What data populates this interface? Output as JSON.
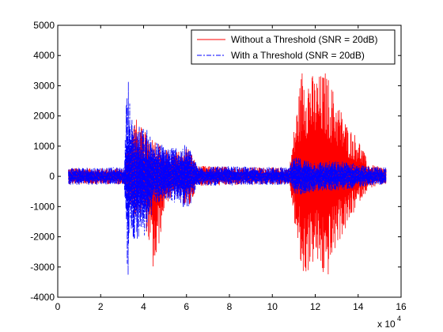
{
  "chart_data": {
    "type": "line",
    "title": "",
    "xlabel": "",
    "ylabel": "",
    "x_multiplier_label": "x 10",
    "x_multiplier_exponent": "4",
    "xlim": [
      0,
      16
    ],
    "ylim": [
      -4000,
      5000
    ],
    "x_ticks": [
      0,
      2,
      4,
      6,
      8,
      10,
      12,
      14,
      16
    ],
    "x_tick_labels": [
      "0",
      "2",
      "4",
      "6",
      "8",
      "10",
      "12",
      "14",
      "16"
    ],
    "y_ticks": [
      -4000,
      -3000,
      -2000,
      -1000,
      0,
      1000,
      2000,
      3000,
      4000,
      5000
    ],
    "y_tick_labels": [
      "-4000",
      "-3000",
      "-2000",
      "-1000",
      "0",
      "1000",
      "2000",
      "3000",
      "4000",
      "5000"
    ],
    "grid": false,
    "legend_position": "top-right",
    "series": [
      {
        "name": "Without a Threshold (SNR = 20dB)",
        "color": "#ff0000",
        "style": "solid",
        "envelope": [
          {
            "x": 0.5,
            "upper": 280,
            "lower": -260
          },
          {
            "x": 3.1,
            "upper": 260,
            "lower": -260
          },
          {
            "x": 3.3,
            "upper": 1200,
            "lower": -900
          },
          {
            "x": 3.6,
            "upper": 2000,
            "lower": -1400
          },
          {
            "x": 4.0,
            "upper": 1500,
            "lower": -1200
          },
          {
            "x": 4.5,
            "upper": 1300,
            "lower": -3400
          },
          {
            "x": 5.0,
            "upper": 900,
            "lower": -900
          },
          {
            "x": 5.5,
            "upper": 800,
            "lower": -700
          },
          {
            "x": 6.1,
            "upper": 1000,
            "lower": -1100
          },
          {
            "x": 6.5,
            "upper": 350,
            "lower": -320
          },
          {
            "x": 10.8,
            "upper": 280,
            "lower": -260
          },
          {
            "x": 11.0,
            "upper": 1500,
            "lower": -1400
          },
          {
            "x": 11.4,
            "upper": 3700,
            "lower": -3500
          },
          {
            "x": 12.0,
            "upper": 3300,
            "lower": -2800
          },
          {
            "x": 12.5,
            "upper": 3500,
            "lower": -3600
          },
          {
            "x": 13.0,
            "upper": 2600,
            "lower": -2300
          },
          {
            "x": 13.5,
            "upper": 1700,
            "lower": -1700
          },
          {
            "x": 14.0,
            "upper": 1300,
            "lower": -900
          },
          {
            "x": 14.5,
            "upper": 400,
            "lower": -400
          },
          {
            "x": 15.3,
            "upper": 280,
            "lower": -260
          }
        ]
      },
      {
        "name": "With a Threshold (SNR = 20dB)",
        "color": "#0000ff",
        "style": "dashdot",
        "envelope": [
          {
            "x": 0.5,
            "upper": 300,
            "lower": -280
          },
          {
            "x": 3.1,
            "upper": 300,
            "lower": -280
          },
          {
            "x": 3.25,
            "upper": 4050,
            "lower": -3800
          },
          {
            "x": 3.4,
            "upper": 2000,
            "lower": -2100
          },
          {
            "x": 3.8,
            "upper": 1700,
            "lower": -2100
          },
          {
            "x": 4.1,
            "upper": 1600,
            "lower": -2000
          },
          {
            "x": 4.6,
            "upper": 1150,
            "lower": -900
          },
          {
            "x": 5.2,
            "upper": 1000,
            "lower": -800
          },
          {
            "x": 6.1,
            "upper": 1050,
            "lower": -1100
          },
          {
            "x": 6.5,
            "upper": 350,
            "lower": -320
          },
          {
            "x": 10.8,
            "upper": 300,
            "lower": -280
          },
          {
            "x": 11.0,
            "upper": 650,
            "lower": -650
          },
          {
            "x": 12.0,
            "upper": 500,
            "lower": -500
          },
          {
            "x": 13.5,
            "upper": 500,
            "lower": -450
          },
          {
            "x": 14.5,
            "upper": 320,
            "lower": -300
          },
          {
            "x": 15.3,
            "upper": 300,
            "lower": -280
          }
        ]
      }
    ]
  }
}
